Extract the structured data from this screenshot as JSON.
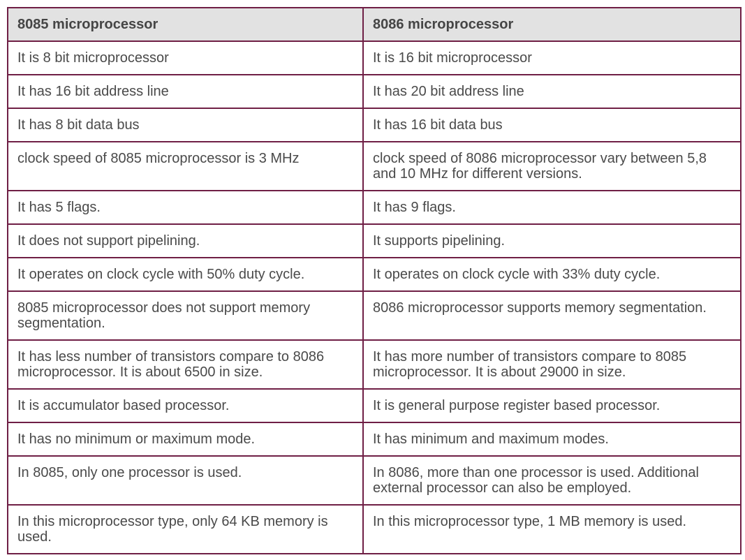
{
  "table": {
    "headers": [
      "8085 microprocessor",
      "8086 microprocessor"
    ],
    "rows": [
      [
        "It is 8 bit microprocessor",
        "It is 16 bit microprocessor"
      ],
      [
        "It has 16 bit address line",
        "It has 20 bit address line"
      ],
      [
        "It has 8 bit data bus",
        "It has 16 bit data bus"
      ],
      [
        "clock speed of 8085 microprocessor is 3 MHz",
        "clock speed of 8086 microprocessor vary between 5,8 and 10 MHz for different versions."
      ],
      [
        "It has 5 flags.",
        "It has 9 flags."
      ],
      [
        "It does not support pipelining.",
        "It supports pipelining."
      ],
      [
        "It operates on clock cycle with 50% duty cycle.",
        "It operates on clock cycle with 33% duty cycle."
      ],
      [
        "8085 microprocessor does not support memory segmentation.",
        "8086 microprocessor supports memory segmentation."
      ],
      [
        "It has less number of transistors compare to 8086 microprocessor. It is about 6500 in size.",
        "It has more number of transistors compare to 8085 microprocessor. It is about 29000 in size."
      ],
      [
        "It is accumulator based processor.",
        "It is general purpose register based processor."
      ],
      [
        "It has no minimum or maximum mode.",
        "It has minimum and maximum modes."
      ],
      [
        "In 8085, only one processor is used.",
        "In 8086, more than one processor is used. Additional external processor can also be employed."
      ],
      [
        "In this microprocessor type, only 64 KB memory is used.",
        "In this microprocessor type, 1 MB memory is used."
      ]
    ]
  },
  "colors": {
    "border": "#6f1f45",
    "header_background": "#e2e2e2",
    "text": "#444444"
  }
}
